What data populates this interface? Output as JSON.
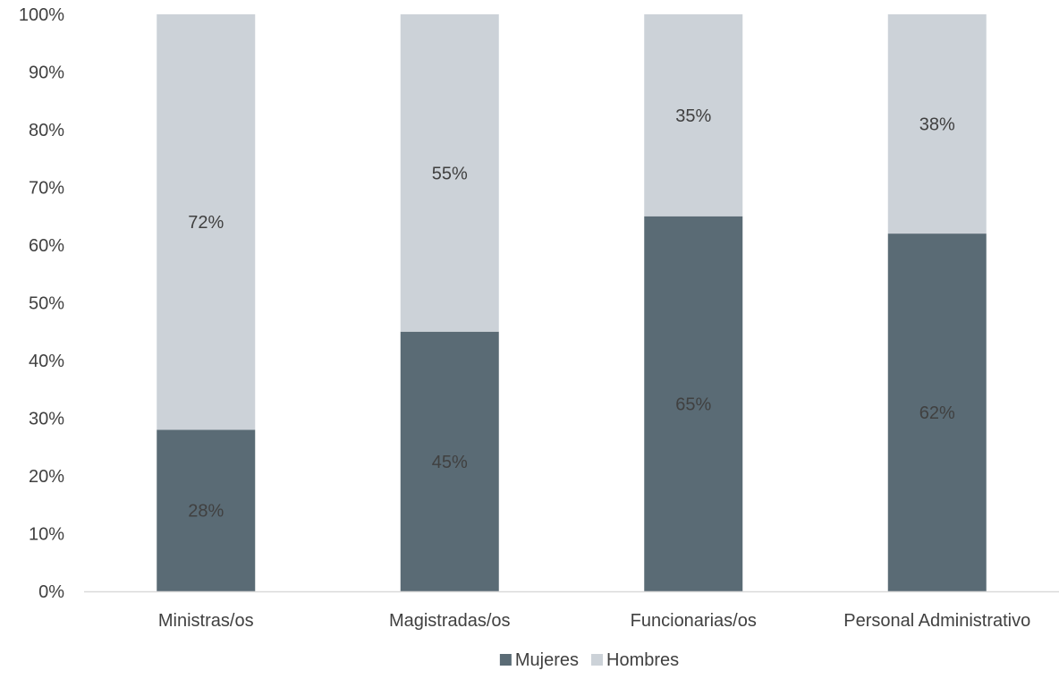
{
  "chart_data": {
    "type": "bar",
    "stacked": true,
    "percent": true,
    "categories": [
      "Ministras/os",
      "Magistradas/os",
      "Funcionarias/os",
      "Personal Administrativo"
    ],
    "series": [
      {
        "name": "Mujeres",
        "values": [
          28,
          45,
          65,
          62
        ],
        "labels": [
          "28%",
          "45%",
          "65%",
          "62%"
        ],
        "color": "#5a6b75"
      },
      {
        "name": "Hombres",
        "values": [
          72,
          55,
          35,
          38
        ],
        "labels": [
          "72%",
          "55%",
          "35%",
          "38%"
        ],
        "color": "#ccd2d8"
      }
    ],
    "ylim": [
      0,
      100
    ],
    "y_ticks": [
      0,
      10,
      20,
      30,
      40,
      50,
      60,
      70,
      80,
      90,
      100
    ],
    "y_tick_labels": [
      "0%",
      "10%",
      "20%",
      "30%",
      "40%",
      "50%",
      "60%",
      "70%",
      "80%",
      "90%",
      "100%"
    ],
    "title": "",
    "xlabel": "",
    "ylabel": "",
    "grid": false,
    "legend_position": "bottom-center",
    "axis_color": "#d9d9d9",
    "text_color": "#404040"
  }
}
